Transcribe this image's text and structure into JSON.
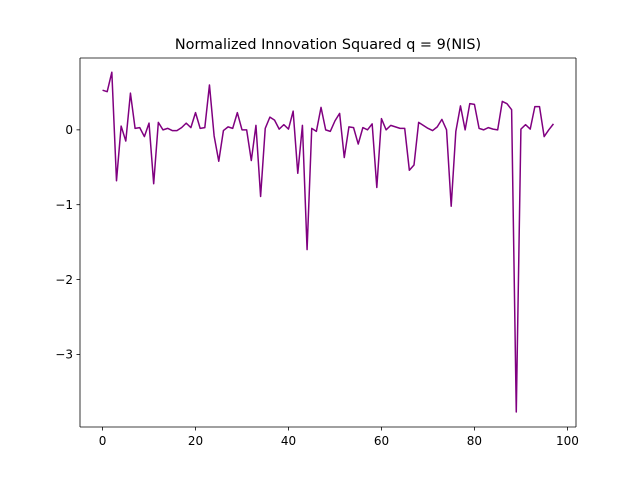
{
  "chart_data": {
    "type": "line",
    "title": "Normalized Innovation Squared q = 9(NIS)",
    "xlabel": "",
    "ylabel": "",
    "xlim": [
      -4.85,
      101.85
    ],
    "ylim": [
      -3.97,
      0.96
    ],
    "x_ticks": [
      0,
      20,
      40,
      60,
      80,
      100
    ],
    "x_tick_labels": [
      "0",
      "20",
      "40",
      "60",
      "80",
      "100"
    ],
    "y_ticks": [
      -3,
      -2,
      -1,
      0
    ],
    "y_tick_labels": [
      "−3",
      "−2",
      "−1",
      "0"
    ],
    "grid": false,
    "legend": "none",
    "series": [
      {
        "color": "#800080",
        "x": [
          0,
          1,
          2,
          3,
          4,
          5,
          6,
          7,
          8,
          9,
          10,
          11,
          12,
          13,
          14,
          15,
          16,
          17,
          18,
          19,
          20,
          21,
          22,
          23,
          24,
          25,
          26,
          27,
          28,
          29,
          30,
          31,
          32,
          33,
          34,
          35,
          36,
          37,
          38,
          39,
          40,
          41,
          42,
          43,
          44,
          45,
          46,
          47,
          48,
          49,
          50,
          51,
          52,
          53,
          54,
          55,
          56,
          57,
          58,
          59,
          60,
          61,
          62,
          63,
          64,
          65,
          66,
          67,
          68,
          69,
          70,
          71,
          72,
          73,
          74,
          75,
          76,
          77,
          78,
          79,
          80,
          81,
          82,
          83,
          84,
          85,
          86,
          87,
          88,
          89,
          90,
          91,
          92,
          93,
          94,
          95,
          96,
          97
        ],
        "values": [
          0.53,
          0.51,
          0.77,
          -0.68,
          0.05,
          -0.15,
          0.49,
          0.02,
          0.03,
          -0.09,
          0.09,
          -0.72,
          0.1,
          0.0,
          0.02,
          -0.01,
          -0.01,
          0.03,
          0.09,
          0.03,
          0.23,
          0.02,
          0.03,
          0.6,
          -0.08,
          -0.42,
          -0.01,
          0.04,
          0.02,
          0.23,
          0.0,
          0.0,
          -0.41,
          0.06,
          -0.89,
          0.02,
          0.17,
          0.13,
          0.01,
          0.07,
          0.01,
          0.25,
          -0.58,
          0.06,
          -1.6,
          0.02,
          -0.02,
          0.3,
          0.0,
          -0.02,
          0.12,
          0.22,
          -0.37,
          0.04,
          0.03,
          -0.19,
          0.03,
          0.0,
          0.08,
          -0.77,
          0.15,
          0.0,
          0.06,
          0.04,
          0.02,
          0.02,
          -0.54,
          -0.47,
          0.1,
          0.06,
          0.02,
          -0.01,
          0.04,
          0.14,
          0.0,
          -1.02,
          -0.02,
          0.32,
          0.0,
          0.35,
          0.34,
          0.02,
          0.0,
          0.03,
          0.01,
          0.0,
          0.38,
          0.35,
          0.27,
          -3.77,
          0.01,
          0.07,
          0.01,
          0.31,
          0.31,
          -0.09,
          0.0,
          0.08
        ]
      }
    ]
  }
}
